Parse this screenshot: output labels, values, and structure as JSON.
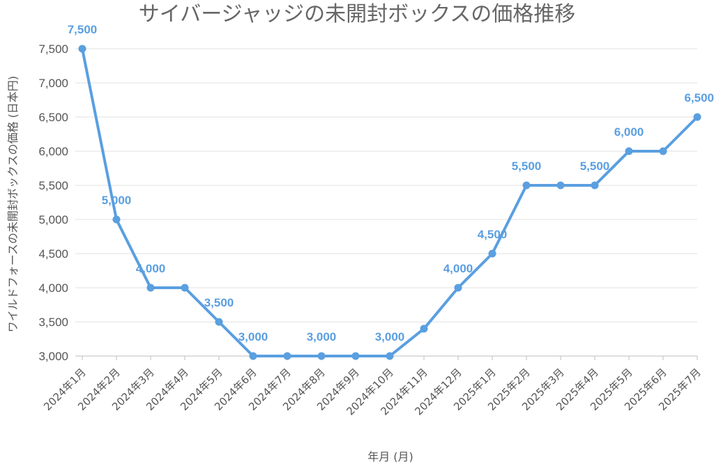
{
  "chart_data": {
    "type": "line",
    "title": "サイバージャッジの未開封ボックスの価格推移",
    "xlabel": "年月 (月)",
    "ylabel": "ワイルドフォースの未開封ボックスの価格 (日本円)",
    "categories": [
      "2024年1月",
      "2024年2月",
      "2024年3月",
      "2024年4月",
      "2024年5月",
      "2024年6月",
      "2024年7月",
      "2024年8月",
      "2024年9月",
      "2024年10月",
      "2024年11月",
      "2024年12月",
      "2025年1月",
      "2025年2月",
      "2025年3月",
      "2025年4月",
      "2025年5月",
      "2025年6月",
      "2025年7月"
    ],
    "series": [
      {
        "values": [
          7500,
          5000,
          4000,
          4000,
          3500,
          3000,
          3000,
          3000,
          3000,
          3000,
          3400,
          4000,
          4500,
          5500,
          5500,
          5500,
          6000,
          6000,
          6500
        ]
      }
    ],
    "data_labels": [
      {
        "index": 0,
        "text": "7,500"
      },
      {
        "index": 1,
        "text": "5,000"
      },
      {
        "index": 2,
        "text": "4,000"
      },
      {
        "index": 4,
        "text": "3,500"
      },
      {
        "index": 5,
        "text": "3,000"
      },
      {
        "index": 7,
        "text": "3,000"
      },
      {
        "index": 9,
        "text": "3,000"
      },
      {
        "index": 11,
        "text": "4,000"
      },
      {
        "index": 12,
        "text": "4,500"
      },
      {
        "index": 13,
        "text": "5,500"
      },
      {
        "index": 15,
        "text": "5,500"
      },
      {
        "index": 16,
        "text": "6,000"
      },
      {
        "index": 18,
        "text": "6,500"
      }
    ],
    "yticks": [
      "3,000",
      "3,500",
      "4,000",
      "4,500",
      "5,000",
      "5,500",
      "6,000",
      "6,500",
      "7,000",
      "7,500"
    ],
    "ylim": [
      3000,
      7500
    ],
    "grid": true,
    "colors": {
      "line": "#5a9fe0",
      "label": "#5a9fe0"
    }
  }
}
